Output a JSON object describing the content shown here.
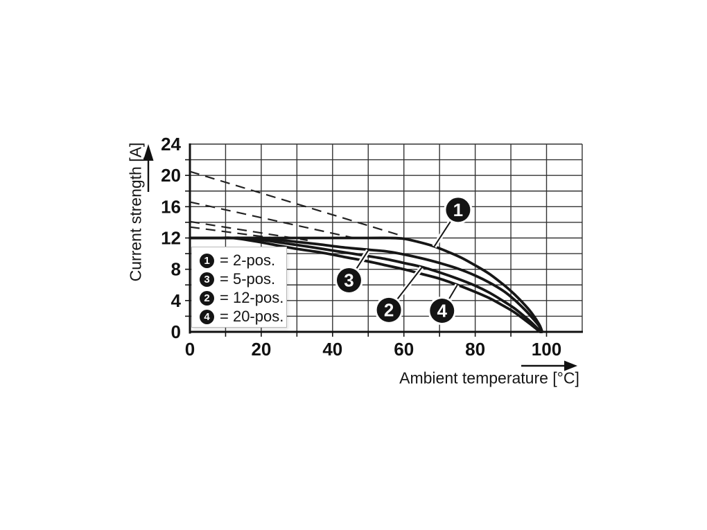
{
  "chart_data": {
    "type": "line",
    "title": "",
    "xlabel": "Ambient temperature [°C]",
    "ylabel": "Current strength [A]",
    "xlim": [
      0,
      110
    ],
    "ylim": [
      0,
      24
    ],
    "x_ticks": [
      0,
      20,
      40,
      60,
      80,
      100
    ],
    "y_ticks": [
      0,
      4,
      8,
      12,
      16,
      20,
      24
    ],
    "x_grid_step": 10,
    "y_grid_step": 2,
    "grid": true,
    "rated_current_plateau_A": 12,
    "series": [
      {
        "id": "1",
        "name": "2-pos.",
        "style": "solid",
        "points": [
          [
            0,
            12
          ],
          [
            30,
            12
          ],
          [
            50,
            12
          ],
          [
            56,
            12
          ],
          [
            60,
            11.9
          ],
          [
            64,
            11.5
          ],
          [
            68,
            11.0
          ],
          [
            72,
            10.3
          ],
          [
            76,
            9.5
          ],
          [
            80,
            8.5
          ],
          [
            84,
            7.4
          ],
          [
            88,
            6.0
          ],
          [
            91,
            4.8
          ],
          [
            94,
            3.4
          ],
          [
            96,
            2.3
          ],
          [
            98,
            0.9
          ],
          [
            98.8,
            0
          ]
        ]
      },
      {
        "id": "3",
        "name": "5-pos.",
        "style": "solid",
        "points": [
          [
            0,
            12
          ],
          [
            12,
            12
          ],
          [
            18,
            12
          ],
          [
            24,
            11.8
          ],
          [
            30,
            11.5
          ],
          [
            36,
            11.2
          ],
          [
            43,
            10.8
          ],
          [
            50,
            10.5
          ],
          [
            55,
            10.3
          ],
          [
            60,
            9.9
          ],
          [
            65,
            9.4
          ],
          [
            70,
            8.8
          ],
          [
            75,
            8.1
          ],
          [
            80,
            7.2
          ],
          [
            84,
            6.3
          ],
          [
            88,
            5.2
          ],
          [
            91,
            4.1
          ],
          [
            94,
            2.8
          ],
          [
            96,
            1.8
          ],
          [
            98,
            0.7
          ],
          [
            98.6,
            0
          ]
        ]
      },
      {
        "id": "2",
        "name": "12-pos.",
        "style": "solid",
        "points": [
          [
            0,
            12
          ],
          [
            10,
            12
          ],
          [
            15,
            12
          ],
          [
            21,
            11.7
          ],
          [
            27,
            11.3
          ],
          [
            33,
            10.9
          ],
          [
            40,
            10.4
          ],
          [
            47,
            9.9
          ],
          [
            55,
            9.3
          ],
          [
            60,
            8.8
          ],
          [
            65,
            8.3
          ],
          [
            70,
            7.6
          ],
          [
            75,
            6.8
          ],
          [
            80,
            5.9
          ],
          [
            84,
            5.0
          ],
          [
            88,
            3.9
          ],
          [
            91,
            3.0
          ],
          [
            94,
            1.9
          ],
          [
            96,
            1.1
          ],
          [
            98.4,
            0
          ]
        ]
      },
      {
        "id": "4",
        "name": "20-pos.",
        "style": "solid",
        "points": [
          [
            0,
            12
          ],
          [
            8,
            12
          ],
          [
            12,
            12
          ],
          [
            18,
            11.6
          ],
          [
            24,
            11.1
          ],
          [
            30,
            10.6
          ],
          [
            36,
            10.2
          ],
          [
            43,
            9.6
          ],
          [
            50,
            9.0
          ],
          [
            55,
            8.5
          ],
          [
            60,
            8.0
          ],
          [
            65,
            7.4
          ],
          [
            70,
            6.8
          ],
          [
            75,
            6.0
          ],
          [
            80,
            5.1
          ],
          [
            84,
            4.3
          ],
          [
            88,
            3.3
          ],
          [
            91,
            2.5
          ],
          [
            94,
            1.5
          ],
          [
            96,
            0.8
          ],
          [
            98.2,
            0
          ]
        ]
      }
    ],
    "dashed_guides": [
      {
        "for": "1",
        "from": [
          0,
          20.5
        ],
        "to": [
          60,
          12.2
        ]
      },
      {
        "for": "3",
        "from": [
          0,
          16.6
        ],
        "to": [
          47,
          11.9
        ]
      },
      {
        "for": "2",
        "from": [
          0,
          14.1
        ],
        "to": [
          33,
          11.7
        ]
      },
      {
        "for": "4",
        "from": [
          0,
          13.4
        ],
        "to": [
          25,
          11.9
        ]
      }
    ],
    "callouts": [
      {
        "label": "1",
        "center": [
          75.2,
          15.6
        ],
        "tip": [
          68.5,
          10.9
        ]
      },
      {
        "label": "3",
        "center": [
          44.6,
          6.6
        ],
        "tip": [
          50.0,
          10.4
        ]
      },
      {
        "label": "2",
        "center": [
          55.8,
          2.8
        ],
        "tip": [
          65.0,
          8.2
        ]
      },
      {
        "label": "4",
        "center": [
          70.7,
          2.7
        ],
        "tip": [
          75.0,
          6.0
        ]
      }
    ],
    "legend": {
      "position": "inside top-left",
      "items": [
        {
          "marker": "1",
          "label": "= 2-pos."
        },
        {
          "marker": "3",
          "label": "= 5-pos."
        },
        {
          "marker": "2",
          "label": "= 12-pos."
        },
        {
          "marker": "4",
          "label": "= 20-pos."
        }
      ]
    }
  },
  "colors": {
    "curve": "#161616",
    "dashed": "#222222",
    "grid": "#333333",
    "axis": "#111111",
    "text": "#111111",
    "callout_bg": "#141414",
    "callout_text": "#ffffff",
    "background": "#ffffff"
  }
}
